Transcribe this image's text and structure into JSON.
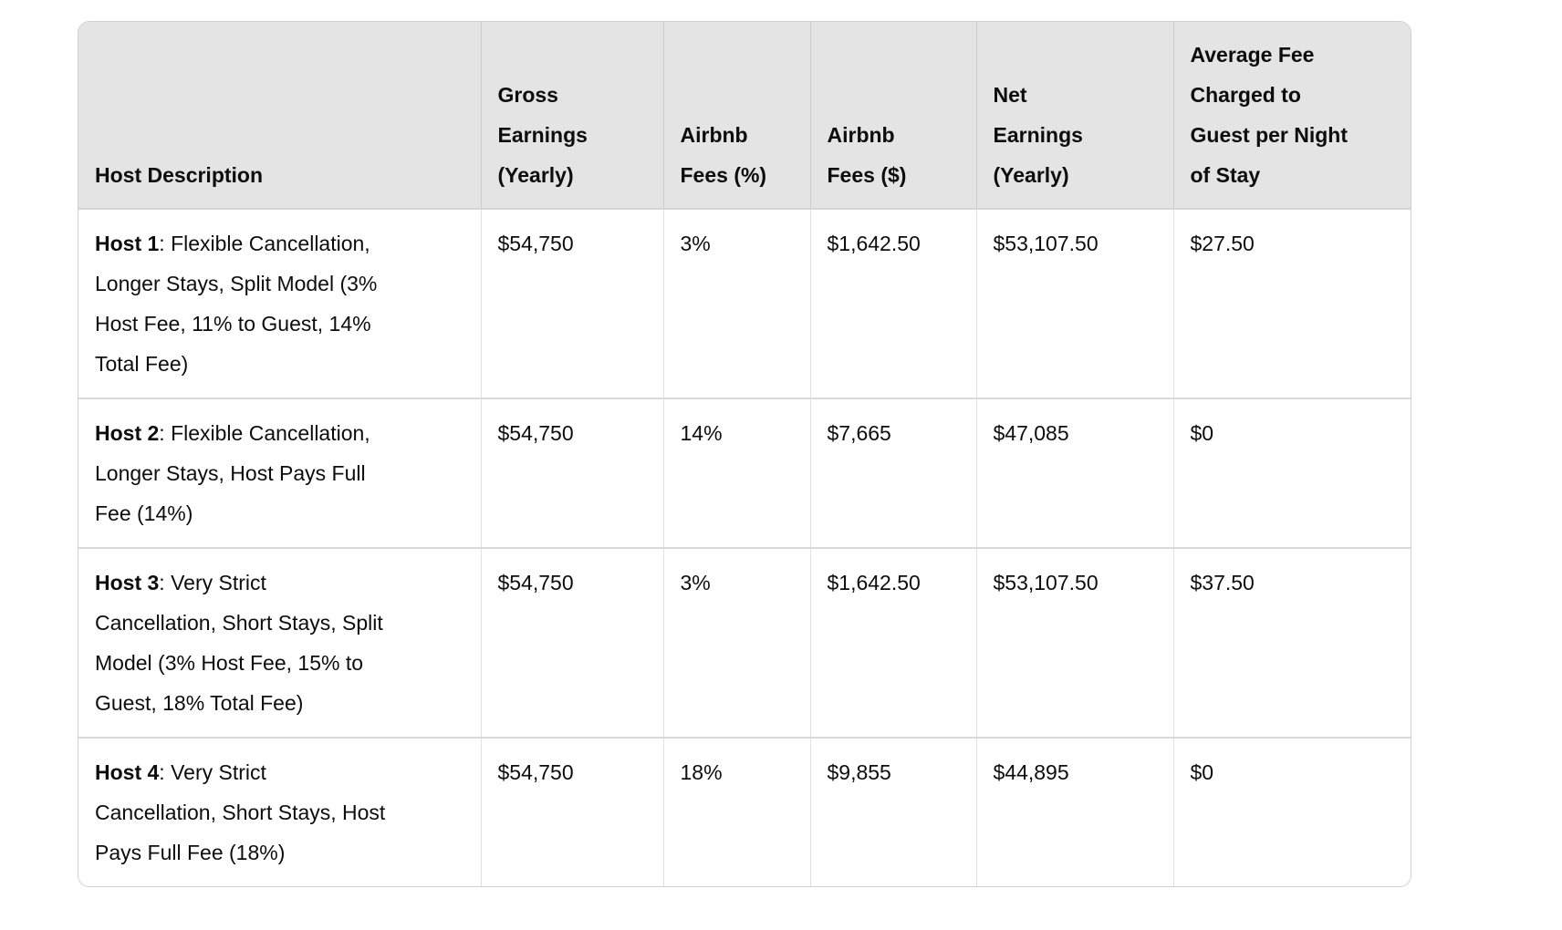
{
  "table": {
    "headers": [
      "Host Description",
      "Gross Earnings (Yearly)",
      "Airbnb Fees (%)",
      "Airbnb Fees ($)",
      "Net Earnings (Yearly)",
      "Average Fee Charged to Guest per Night of Stay"
    ],
    "rows": [
      {
        "host": "Host 1",
        "description": ": Flexible Cancellation, Longer Stays, Split Model (3% Host Fee, 11% to Guest, 14% Total Fee)",
        "gross_earnings": "$54,750",
        "airbnb_fees_pct": "3%",
        "airbnb_fees_usd": "$1,642.50",
        "net_earnings": "$53,107.50",
        "avg_fee_guest_per_night": "$27.50"
      },
      {
        "host": "Host 2",
        "description": ": Flexible Cancellation, Longer Stays, Host Pays Full Fee (14%)",
        "gross_earnings": "$54,750",
        "airbnb_fees_pct": "14%",
        "airbnb_fees_usd": "$7,665",
        "net_earnings": "$47,085",
        "avg_fee_guest_per_night": "$0"
      },
      {
        "host": "Host 3",
        "description": ": Very Strict Cancellation, Short Stays, Split Model (3% Host Fee, 15% to Guest, 18% Total Fee)",
        "gross_earnings": "$54,750",
        "airbnb_fees_pct": "3%",
        "airbnb_fees_usd": "$1,642.50",
        "net_earnings": "$53,107.50",
        "avg_fee_guest_per_night": "$37.50"
      },
      {
        "host": "Host 4",
        "description": ": Very Strict Cancellation, Short Stays, Host Pays Full Fee (18%)",
        "gross_earnings": "$54,750",
        "airbnb_fees_pct": "18%",
        "airbnb_fees_usd": "$9,855",
        "net_earnings": "$44,895",
        "avg_fee_guest_per_night": "$0"
      }
    ]
  },
  "colors": {
    "header_bg": "#e4e4e4",
    "row_bg": "#ffffff",
    "outer_border": "#cfcfcf",
    "row_divider": "#d9d9d9",
    "column_divider": "#e0e0e0",
    "text": "#0d0d0d"
  }
}
